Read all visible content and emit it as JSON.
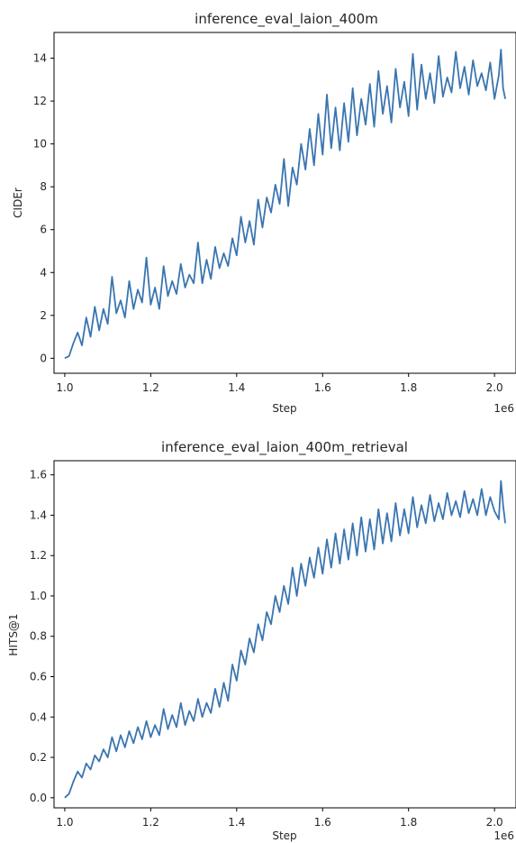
{
  "chart_data": [
    {
      "type": "line",
      "title": "inference_eval_laion_400m",
      "xlabel": "Step",
      "ylabel": "CIDEr",
      "x_offset_label": "1e6",
      "xlim": [
        0.975,
        2.05
      ],
      "ylim": [
        -0.7,
        15.2
      ],
      "xticks": [
        1.0,
        1.2,
        1.4,
        1.6,
        1.8,
        2.0
      ],
      "xtick_labels": [
        "1.0",
        "1.2",
        "1.4",
        "1.6",
        "1.8",
        "2.0"
      ],
      "yticks": [
        0,
        2,
        4,
        6,
        8,
        10,
        12,
        14
      ],
      "ytick_labels": [
        "0",
        "2",
        "4",
        "6",
        "8",
        "10",
        "12",
        "14"
      ],
      "series": [
        {
          "color": "#3a75b0",
          "x": [
            1.0,
            1.01,
            1.02,
            1.03,
            1.04,
            1.05,
            1.06,
            1.07,
            1.08,
            1.09,
            1.1,
            1.11,
            1.12,
            1.13,
            1.14,
            1.15,
            1.16,
            1.17,
            1.18,
            1.19,
            1.2,
            1.21,
            1.22,
            1.23,
            1.24,
            1.25,
            1.26,
            1.27,
            1.28,
            1.29,
            1.3,
            1.31,
            1.32,
            1.33,
            1.34,
            1.35,
            1.36,
            1.37,
            1.38,
            1.39,
            1.4,
            1.41,
            1.42,
            1.43,
            1.44,
            1.45,
            1.46,
            1.47,
            1.48,
            1.49,
            1.5,
            1.51,
            1.52,
            1.53,
            1.54,
            1.55,
            1.56,
            1.57,
            1.58,
            1.59,
            1.6,
            1.61,
            1.62,
            1.63,
            1.64,
            1.65,
            1.66,
            1.67,
            1.68,
            1.69,
            1.7,
            1.71,
            1.72,
            1.73,
            1.74,
            1.75,
            1.76,
            1.77,
            1.78,
            1.79,
            1.8,
            1.81,
            1.82,
            1.83,
            1.84,
            1.85,
            1.86,
            1.87,
            1.88,
            1.89,
            1.9,
            1.91,
            1.92,
            1.93,
            1.94,
            1.95,
            1.96,
            1.97,
            1.98,
            1.99,
            2.0,
            2.01,
            2.015,
            2.02,
            2.025
          ],
          "values": [
            0.0,
            0.1,
            0.7,
            1.2,
            0.6,
            1.9,
            1.0,
            2.4,
            1.3,
            2.3,
            1.6,
            3.8,
            2.1,
            2.7,
            1.9,
            3.6,
            2.3,
            3.2,
            2.6,
            4.7,
            2.5,
            3.3,
            2.3,
            4.3,
            2.9,
            3.6,
            3.0,
            4.4,
            3.3,
            3.9,
            3.5,
            5.4,
            3.5,
            4.6,
            3.7,
            5.2,
            4.2,
            4.9,
            4.3,
            5.6,
            4.8,
            6.6,
            5.4,
            6.4,
            5.3,
            7.4,
            6.1,
            7.5,
            6.8,
            8.1,
            7.2,
            9.3,
            7.1,
            8.9,
            8.1,
            10.0,
            8.8,
            10.7,
            9.0,
            11.4,
            9.5,
            12.3,
            9.8,
            11.7,
            9.7,
            11.9,
            10.1,
            12.6,
            10.4,
            12.1,
            10.9,
            12.8,
            10.8,
            13.4,
            11.4,
            12.7,
            11.0,
            13.5,
            11.7,
            12.9,
            11.3,
            14.2,
            11.6,
            13.7,
            12.1,
            13.3,
            11.9,
            14.1,
            12.2,
            13.1,
            12.4,
            14.3,
            12.6,
            13.6,
            12.3,
            13.9,
            12.7,
            13.3,
            12.5,
            13.8,
            12.1,
            13.2,
            14.4,
            12.6,
            12.1
          ]
        }
      ]
    },
    {
      "type": "line",
      "title": "inference_eval_laion_400m_retrieval",
      "xlabel": "Step",
      "ylabel": "HITS@1",
      "x_offset_label": "1e6",
      "xlim": [
        0.975,
        2.05
      ],
      "ylim": [
        -0.05,
        1.67
      ],
      "xticks": [
        1.0,
        1.2,
        1.4,
        1.6,
        1.8,
        2.0
      ],
      "xtick_labels": [
        "1.0",
        "1.2",
        "1.4",
        "1.6",
        "1.8",
        "2.0"
      ],
      "yticks": [
        0.0,
        0.2,
        0.4,
        0.6,
        0.8,
        1.0,
        1.2,
        1.4,
        1.6
      ],
      "ytick_labels": [
        "0.0",
        "0.2",
        "0.4",
        "0.6",
        "0.8",
        "1.0",
        "1.2",
        "1.4",
        "1.6"
      ],
      "series": [
        {
          "color": "#3a75b0",
          "x": [
            1.0,
            1.01,
            1.02,
            1.03,
            1.04,
            1.05,
            1.06,
            1.07,
            1.08,
            1.09,
            1.1,
            1.11,
            1.12,
            1.13,
            1.14,
            1.15,
            1.16,
            1.17,
            1.18,
            1.19,
            1.2,
            1.21,
            1.22,
            1.23,
            1.24,
            1.25,
            1.26,
            1.27,
            1.28,
            1.29,
            1.3,
            1.31,
            1.32,
            1.33,
            1.34,
            1.35,
            1.36,
            1.37,
            1.38,
            1.39,
            1.4,
            1.41,
            1.42,
            1.43,
            1.44,
            1.45,
            1.46,
            1.47,
            1.48,
            1.49,
            1.5,
            1.51,
            1.52,
            1.53,
            1.54,
            1.55,
            1.56,
            1.57,
            1.58,
            1.59,
            1.6,
            1.61,
            1.62,
            1.63,
            1.64,
            1.65,
            1.66,
            1.67,
            1.68,
            1.69,
            1.7,
            1.71,
            1.72,
            1.73,
            1.74,
            1.75,
            1.76,
            1.77,
            1.78,
            1.79,
            1.8,
            1.81,
            1.82,
            1.83,
            1.84,
            1.85,
            1.86,
            1.87,
            1.88,
            1.89,
            1.9,
            1.91,
            1.92,
            1.93,
            1.94,
            1.95,
            1.96,
            1.97,
            1.98,
            1.99,
            2.0,
            2.01,
            2.015,
            2.02,
            2.025
          ],
          "values": [
            0.0,
            0.02,
            0.08,
            0.13,
            0.1,
            0.17,
            0.14,
            0.21,
            0.18,
            0.24,
            0.2,
            0.3,
            0.23,
            0.31,
            0.25,
            0.33,
            0.27,
            0.35,
            0.29,
            0.38,
            0.3,
            0.36,
            0.31,
            0.44,
            0.34,
            0.41,
            0.35,
            0.47,
            0.36,
            0.43,
            0.38,
            0.49,
            0.4,
            0.47,
            0.42,
            0.54,
            0.45,
            0.57,
            0.48,
            0.66,
            0.58,
            0.73,
            0.66,
            0.79,
            0.72,
            0.86,
            0.78,
            0.92,
            0.86,
            1.0,
            0.92,
            1.05,
            0.96,
            1.14,
            1.0,
            1.16,
            1.05,
            1.19,
            1.09,
            1.24,
            1.11,
            1.28,
            1.14,
            1.31,
            1.16,
            1.33,
            1.18,
            1.36,
            1.2,
            1.39,
            1.22,
            1.38,
            1.23,
            1.43,
            1.26,
            1.41,
            1.27,
            1.46,
            1.3,
            1.43,
            1.31,
            1.49,
            1.34,
            1.45,
            1.36,
            1.5,
            1.37,
            1.46,
            1.38,
            1.51,
            1.4,
            1.47,
            1.39,
            1.52,
            1.41,
            1.48,
            1.4,
            1.53,
            1.4,
            1.49,
            1.42,
            1.38,
            1.57,
            1.45,
            1.36
          ]
        }
      ]
    }
  ]
}
